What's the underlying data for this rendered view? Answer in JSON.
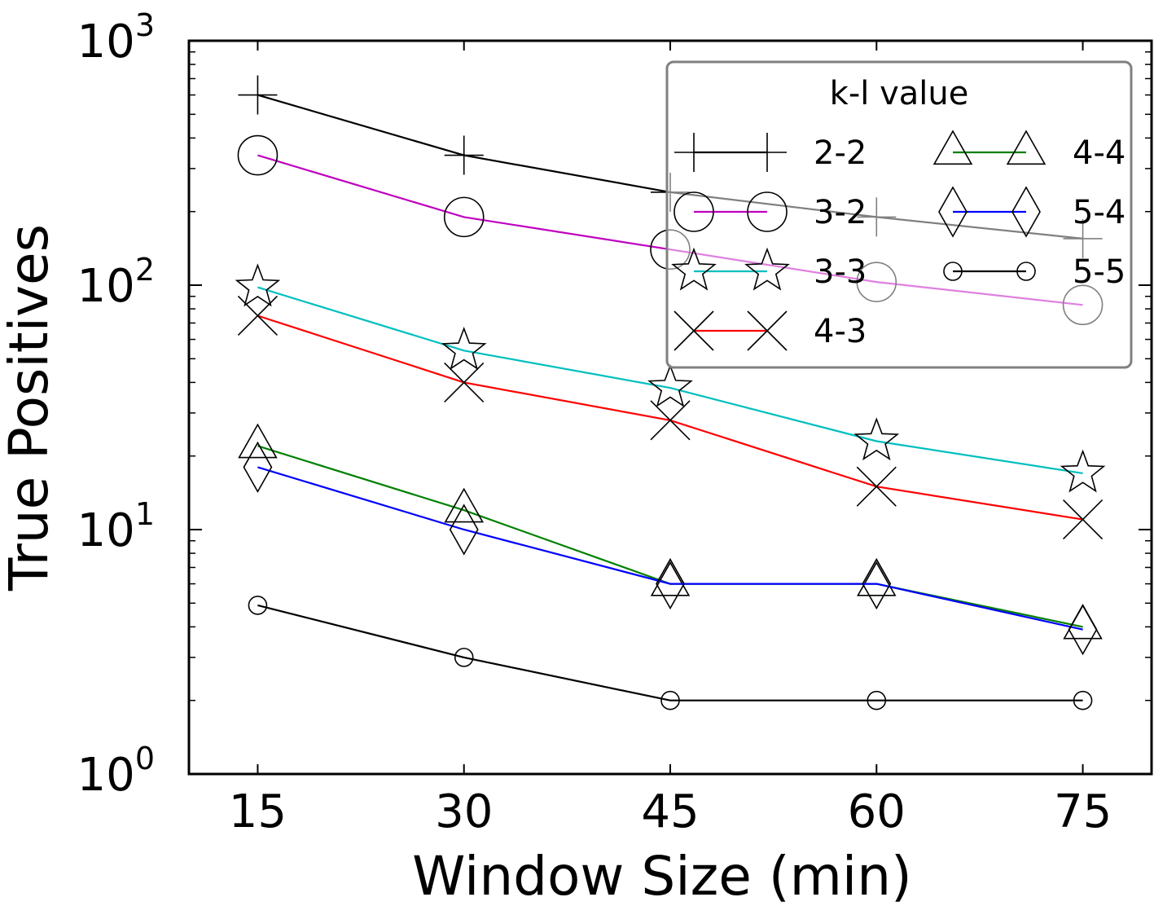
{
  "chart_data": {
    "type": "line",
    "title": "",
    "xlabel": "Window Size (min)",
    "ylabel": "True Positives",
    "yscale": "log",
    "x": [
      15,
      30,
      45,
      60,
      75
    ],
    "xlim": [
      10,
      80
    ],
    "ylim": [
      1,
      1000
    ],
    "xticks": [
      "15",
      "30",
      "45",
      "60",
      "75"
    ],
    "yticks": [
      {
        "base": "10",
        "exp": "0"
      },
      {
        "base": "10",
        "exp": "1"
      },
      {
        "base": "10",
        "exp": "2"
      },
      {
        "base": "10",
        "exp": "3"
      }
    ],
    "legend": {
      "title": "k-l value",
      "location": "top-right",
      "columns": 2
    },
    "series": [
      {
        "name": "2-2",
        "color": "#000000",
        "marker": "plus",
        "values": [
          600,
          340,
          240,
          190,
          155
        ]
      },
      {
        "name": "3-2",
        "color": "#bf00bf",
        "marker": "circle",
        "values": [
          340,
          190,
          140,
          103,
          83
        ]
      },
      {
        "name": "3-3",
        "color": "#00bfbf",
        "marker": "star",
        "values": [
          98,
          54,
          38,
          23,
          17
        ]
      },
      {
        "name": "4-3",
        "color": "#ff0000",
        "marker": "x",
        "values": [
          75,
          40,
          28,
          15,
          11
        ]
      },
      {
        "name": "4-4",
        "color": "#008000",
        "marker": "triangle",
        "values": [
          22,
          12,
          6,
          6,
          4
        ]
      },
      {
        "name": "5-4",
        "color": "#0000ff",
        "marker": "diamond",
        "values": [
          18,
          10,
          6,
          6,
          3.9
        ]
      },
      {
        "name": "5-5",
        "color": "#000000",
        "marker": "small-circle",
        "values": [
          4.9,
          3,
          2,
          2,
          2
        ]
      }
    ]
  }
}
